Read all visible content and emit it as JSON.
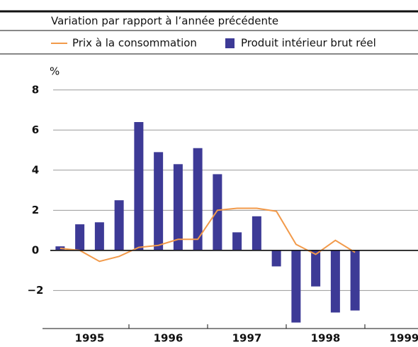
{
  "chart_data": {
    "type": "bar_line",
    "title": "Variation par rapport à l’année précédente",
    "y_unit": "%",
    "categories": [
      null,
      null,
      null,
      null,
      null,
      null,
      null,
      null,
      null,
      null,
      null,
      null,
      null,
      null,
      null,
      null
    ],
    "year_labels": [
      "1995",
      "1996",
      "1997",
      "1998",
      "1999"
    ],
    "series": [
      {
        "name": "Prix à la consommation",
        "type": "line",
        "color": "#f29a4a",
        "values": [
          0.1,
          0.0,
          -0.55,
          -0.3,
          0.15,
          0.25,
          0.55,
          0.55,
          2.0,
          2.1,
          2.1,
          1.95,
          0.3,
          -0.2,
          0.5,
          -0.1
        ]
      },
      {
        "name": "Produit intérieur brut réel",
        "type": "bar",
        "color": "#3d3a96",
        "values": [
          0.2,
          1.3,
          1.4,
          2.5,
          6.4,
          4.9,
          4.3,
          5.1,
          3.8,
          0.9,
          1.7,
          -0.8,
          -3.6,
          -1.8,
          -3.1,
          -3.0
        ]
      }
    ],
    "ylim": [
      -3.9,
      8.4
    ],
    "yticks": [
      8,
      6,
      4,
      2,
      0,
      {
        "value": -2,
        "label": "−2"
      }
    ],
    "grid": true
  }
}
